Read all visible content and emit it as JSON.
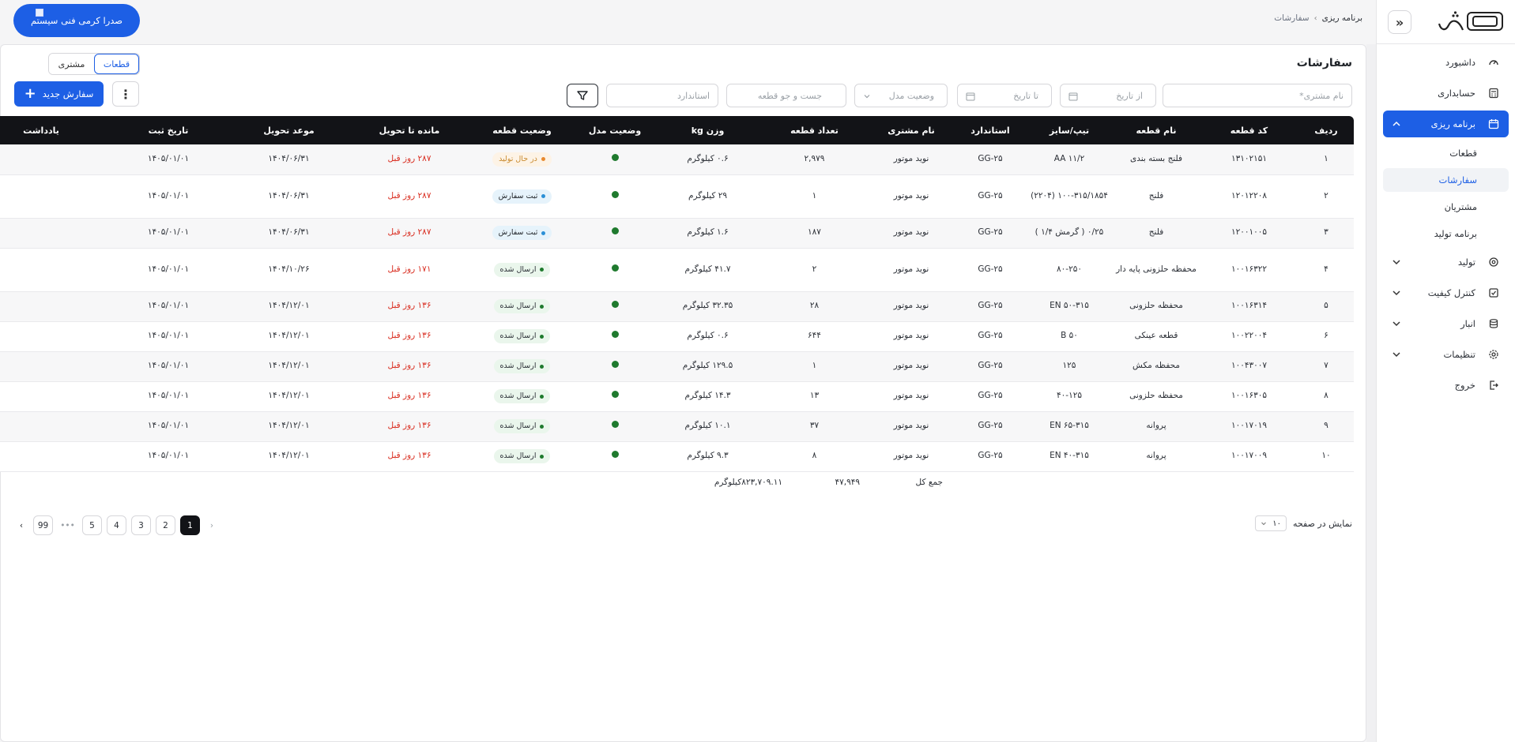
{
  "sidebar": {
    "items": [
      {
        "label": "داشبورد",
        "icon": "dashboard-icon"
      },
      {
        "label": "حسابداری",
        "icon": "calculator-icon"
      },
      {
        "label": "برنامه ریزی",
        "icon": "calendar-icon",
        "active": true
      },
      {
        "label": "تولید",
        "icon": "factory-icon"
      },
      {
        "label": "کنترل کیفیت",
        "icon": "check-square-icon"
      },
      {
        "label": "انبار",
        "icon": "database-icon"
      },
      {
        "label": "تنظیمات",
        "icon": "gear-icon"
      },
      {
        "label": "خروج",
        "icon": "logout-icon"
      }
    ],
    "subitems": [
      {
        "label": "قطعات"
      },
      {
        "label": "سفارشات",
        "active": true
      },
      {
        "label": "مشتریان"
      },
      {
        "label": "برنامه تولید"
      }
    ]
  },
  "breadcrumb": {
    "parent": "برنامه ریزی",
    "current": "سفارشات"
  },
  "company_button": "صدرا کرمی فنی سیستم",
  "page": {
    "title": "سفارشات"
  },
  "view_toggle": {
    "parts": "قطعات",
    "customer": "مشتری"
  },
  "filters": {
    "customer_placeholder": "نام مشتری*",
    "from_date": "از تاریخ",
    "to_date": "تا تاریخ",
    "model_status": "وضعیت مدل",
    "part_search": "جست و جو قطعه",
    "standard": "استاندارد"
  },
  "new_order_label": "سفارش جدید",
  "table": {
    "headers": [
      "ردیف",
      "کد قطعه",
      "نام قطعه",
      "تیپ/سایز",
      "استاندارد",
      "نام مشتری",
      "تعداد قطعه",
      "وزن kg",
      "وضعیت مدل",
      "وضعیت قطعه",
      "مانده تا تحویل",
      "موعد تحویل",
      "تاریخ ثبت",
      "یادداشت"
    ],
    "rows": [
      {
        "n": "۱",
        "code": "۱۳۱۰۲۱۵۱",
        "name": "فلنج بسته بندی",
        "size": "AA ۱۱/۲",
        "std": "GG-۲۵",
        "customer": "نوید موتور",
        "qty": "۲,۹۷۹",
        "weight": "۰.۶ کیلوگرم",
        "status": "در حال تولید",
        "kind": "prod",
        "remain": "۲۸۷ روز قبل",
        "due": "۱۴۰۴/۰۶/۳۱",
        "reg": "۱۴۰۵/۰۱/۰۱",
        "note": ""
      },
      {
        "n": "۲",
        "code": "۱۲۰۱۲۲۰۸",
        "name": "فلنج",
        "size": "۱۰۰-۳۱۵/۱۸۵۴ (۲۲۰۴)",
        "std": "GG-۲۵",
        "customer": "نوید موتور",
        "qty": "۱",
        "weight": "۲۹ کیلوگرم",
        "status": "ثبت سفارش",
        "kind": "reg",
        "remain": "۲۸۷ روز قبل",
        "due": "۱۴۰۴/۰۶/۳۱",
        "reg": "۱۴۰۵/۰۱/۰۱",
        "note": "",
        "tall": true
      },
      {
        "n": "۳",
        "code": "۱۲۰۰۱۰۰۵",
        "name": "فلنج",
        "size": "۰/۲۵ ( گرمش ۱/۴ )",
        "std": "GG-۲۵",
        "customer": "نوید موتور",
        "qty": "۱۸۷",
        "weight": "۱.۶ کیلوگرم",
        "status": "ثبت سفارش",
        "kind": "reg",
        "remain": "۲۸۷ روز قبل",
        "due": "۱۴۰۴/۰۶/۳۱",
        "reg": "۱۴۰۵/۰۱/۰۱",
        "note": ""
      },
      {
        "n": "۴",
        "code": "۱۰۰۱۶۳۲۲",
        "name": "محفظه حلزونی پایه دار",
        "size": "۸۰-۲۵۰",
        "std": "GG-۲۵",
        "customer": "نوید موتور",
        "qty": "۲",
        "weight": "۴۱.۷ کیلوگرم",
        "status": "ارسال شده",
        "kind": "sent",
        "remain": "۱۷۱ روز قبل",
        "due": "۱۴۰۴/۱۰/۲۶",
        "reg": "۱۴۰۵/۰۱/۰۱",
        "note": "",
        "tall": true
      },
      {
        "n": "۵",
        "code": "۱۰۰۱۶۳۱۴",
        "name": "محفظه حلزونی",
        "size": "EN ۵۰-۳۱۵",
        "std": "GG-۲۵",
        "customer": "نوید موتور",
        "qty": "۲۸",
        "weight": "۳۲.۳۵ کیلوگرم",
        "status": "ارسال شده",
        "kind": "sent",
        "remain": "۱۳۶ روز قبل",
        "due": "۱۴۰۴/۱۲/۰۱",
        "reg": "۱۴۰۵/۰۱/۰۱",
        "note": ""
      },
      {
        "n": "۶",
        "code": "۱۰۰۲۲۰۰۴",
        "name": "قطعه عینکی",
        "size": "B ۵۰",
        "std": "GG-۲۵",
        "customer": "نوید موتور",
        "qty": "۶۴۴",
        "weight": "۰.۶ کیلوگرم",
        "status": "ارسال شده",
        "kind": "sent",
        "remain": "۱۳۶ روز قبل",
        "due": "۱۴۰۴/۱۲/۰۱",
        "reg": "۱۴۰۵/۰۱/۰۱",
        "note": ""
      },
      {
        "n": "۷",
        "code": "۱۰۰۴۳۰۰۷",
        "name": "محفظه مکش",
        "size": "۱۲۵",
        "std": "GG-۲۵",
        "customer": "نوید موتور",
        "qty": "۱",
        "weight": "۱۲۹.۵ کیلوگرم",
        "status": "ارسال شده",
        "kind": "sent",
        "remain": "۱۳۶ روز قبل",
        "due": "۱۴۰۴/۱۲/۰۱",
        "reg": "۱۴۰۵/۰۱/۰۱",
        "note": ""
      },
      {
        "n": "۸",
        "code": "۱۰۰۱۶۳۰۵",
        "name": "محفظه حلزونی",
        "size": "۴۰-۱۲۵",
        "std": "GG-۲۵",
        "customer": "نوید موتور",
        "qty": "۱۳",
        "weight": "۱۴.۳ کیلوگرم",
        "status": "ارسال شده",
        "kind": "sent",
        "remain": "۱۳۶ روز قبل",
        "due": "۱۴۰۴/۱۲/۰۱",
        "reg": "۱۴۰۵/۰۱/۰۱",
        "note": ""
      },
      {
        "n": "۹",
        "code": "۱۰۰۱۷۰۱۹",
        "name": "پروانه",
        "size": "EN ۶۵-۳۱۵",
        "std": "GG-۲۵",
        "customer": "نوید موتور",
        "qty": "۳۷",
        "weight": "۱۰.۱ کیلوگرم",
        "status": "ارسال شده",
        "kind": "sent",
        "remain": "۱۳۶ روز قبل",
        "due": "۱۴۰۴/۱۲/۰۱",
        "reg": "۱۴۰۵/۰۱/۰۱",
        "note": ""
      },
      {
        "n": "۱۰",
        "code": "۱۰۰۱۷۰۰۹",
        "name": "پروانه",
        "size": "EN ۴۰-۳۱۵",
        "std": "GG-۲۵",
        "customer": "نوید موتور",
        "qty": "۸",
        "weight": "۹.۳ کیلوگرم",
        "status": "ارسال شده",
        "kind": "sent",
        "remain": "۱۳۶ روز قبل",
        "due": "۱۴۰۴/۱۲/۰۱",
        "reg": "۱۴۰۵/۰۱/۰۱",
        "note": ""
      }
    ]
  },
  "totals": {
    "label": "جمع کل",
    "qty": "۴۷,۹۴۹",
    "weight": "۸۲۳,۷۰۹.۱۱کیلوگرم"
  },
  "pagination": {
    "page_size_label": "نمایش در صفحه",
    "page_size": "۱۰",
    "pages": [
      "1",
      "2",
      "3",
      "4",
      "5",
      "99"
    ],
    "current": "1",
    "ellipsis": "•••"
  },
  "colors": {
    "accent": "#1d5fe5",
    "header_bg": "#121317",
    "overdue": "#d92d20",
    "model_ok": "#1f7a2e"
  }
}
